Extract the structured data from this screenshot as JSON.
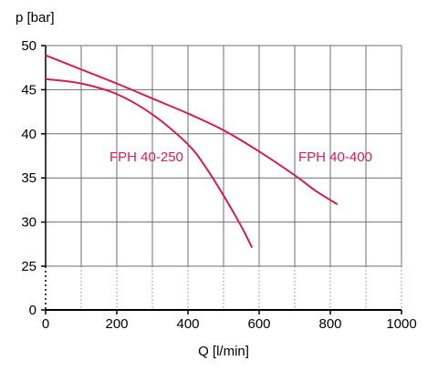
{
  "chart_data": {
    "type": "line",
    "xlabel": "Q [l/min]",
    "ylabel": "p [bar]",
    "xlim": [
      0,
      1000
    ],
    "x_ticks": [
      0,
      200,
      400,
      600,
      800,
      1000
    ],
    "x_ticks_labels": [
      "0",
      "200",
      "400",
      "600",
      "800",
      "1000"
    ],
    "y_ticks_labels": [
      "0",
      "25",
      "30",
      "35",
      "40",
      "45",
      "50"
    ],
    "y_axis_break": "between 0 and 25",
    "y_ticks_upper": [
      25,
      30,
      35,
      40,
      45,
      50
    ],
    "grid": true,
    "series": [
      {
        "name": "FPH 40-250",
        "color": "#d21e50",
        "points": [
          [
            0,
            46.2
          ],
          [
            100,
            45.7
          ],
          [
            200,
            44.5
          ],
          [
            300,
            42.2
          ],
          [
            400,
            38.8
          ],
          [
            450,
            36.2
          ],
          [
            500,
            33.0
          ],
          [
            550,
            29.5
          ],
          [
            580,
            27.1
          ]
        ]
      },
      {
        "name": "FPH 40-400",
        "color": "#d21e50",
        "points": [
          [
            0,
            48.9
          ],
          [
            100,
            47.3
          ],
          [
            200,
            45.7
          ],
          [
            300,
            44.0
          ],
          [
            400,
            42.3
          ],
          [
            500,
            40.4
          ],
          [
            600,
            38.0
          ],
          [
            700,
            35.3
          ],
          [
            760,
            33.5
          ],
          [
            820,
            32.0
          ]
        ]
      }
    ]
  }
}
